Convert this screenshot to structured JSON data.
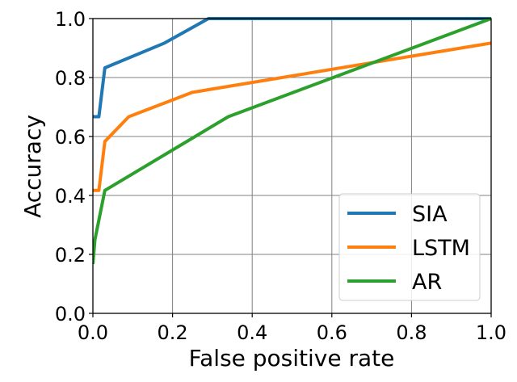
{
  "chart_data": {
    "type": "line",
    "title": "",
    "xlabel": "False positive rate",
    "ylabel": "Accuracy",
    "xlim": [
      0,
      1
    ],
    "ylim": [
      0,
      1
    ],
    "grid": true,
    "legend_position": "lower-right",
    "xticks": [
      "0.0",
      "0.2",
      "0.4",
      "0.6",
      "0.8",
      "1.0"
    ],
    "yticks": [
      "0.0",
      "0.2",
      "0.4",
      "0.6",
      "0.8",
      "1.0"
    ],
    "series": [
      {
        "name": "SIA",
        "color": "#1f77b4",
        "points": [
          [
            0.0,
            0.667
          ],
          [
            0.015,
            0.667
          ],
          [
            0.03,
            0.833
          ],
          [
            0.18,
            0.917
          ],
          [
            0.29,
            1.0
          ],
          [
            1.0,
            1.0
          ]
        ]
      },
      {
        "name": "LSTM",
        "color": "#ff7f0e",
        "points": [
          [
            0.0,
            0.417
          ],
          [
            0.015,
            0.417
          ],
          [
            0.03,
            0.583
          ],
          [
            0.09,
            0.667
          ],
          [
            0.25,
            0.75
          ],
          [
            1.0,
            0.917
          ]
        ]
      },
      {
        "name": "AR",
        "color": "#2ca02c",
        "points": [
          [
            0.0,
            0.167
          ],
          [
            0.005,
            0.25
          ],
          [
            0.03,
            0.417
          ],
          [
            0.34,
            0.667
          ],
          [
            1.0,
            1.0
          ]
        ]
      }
    ]
  }
}
